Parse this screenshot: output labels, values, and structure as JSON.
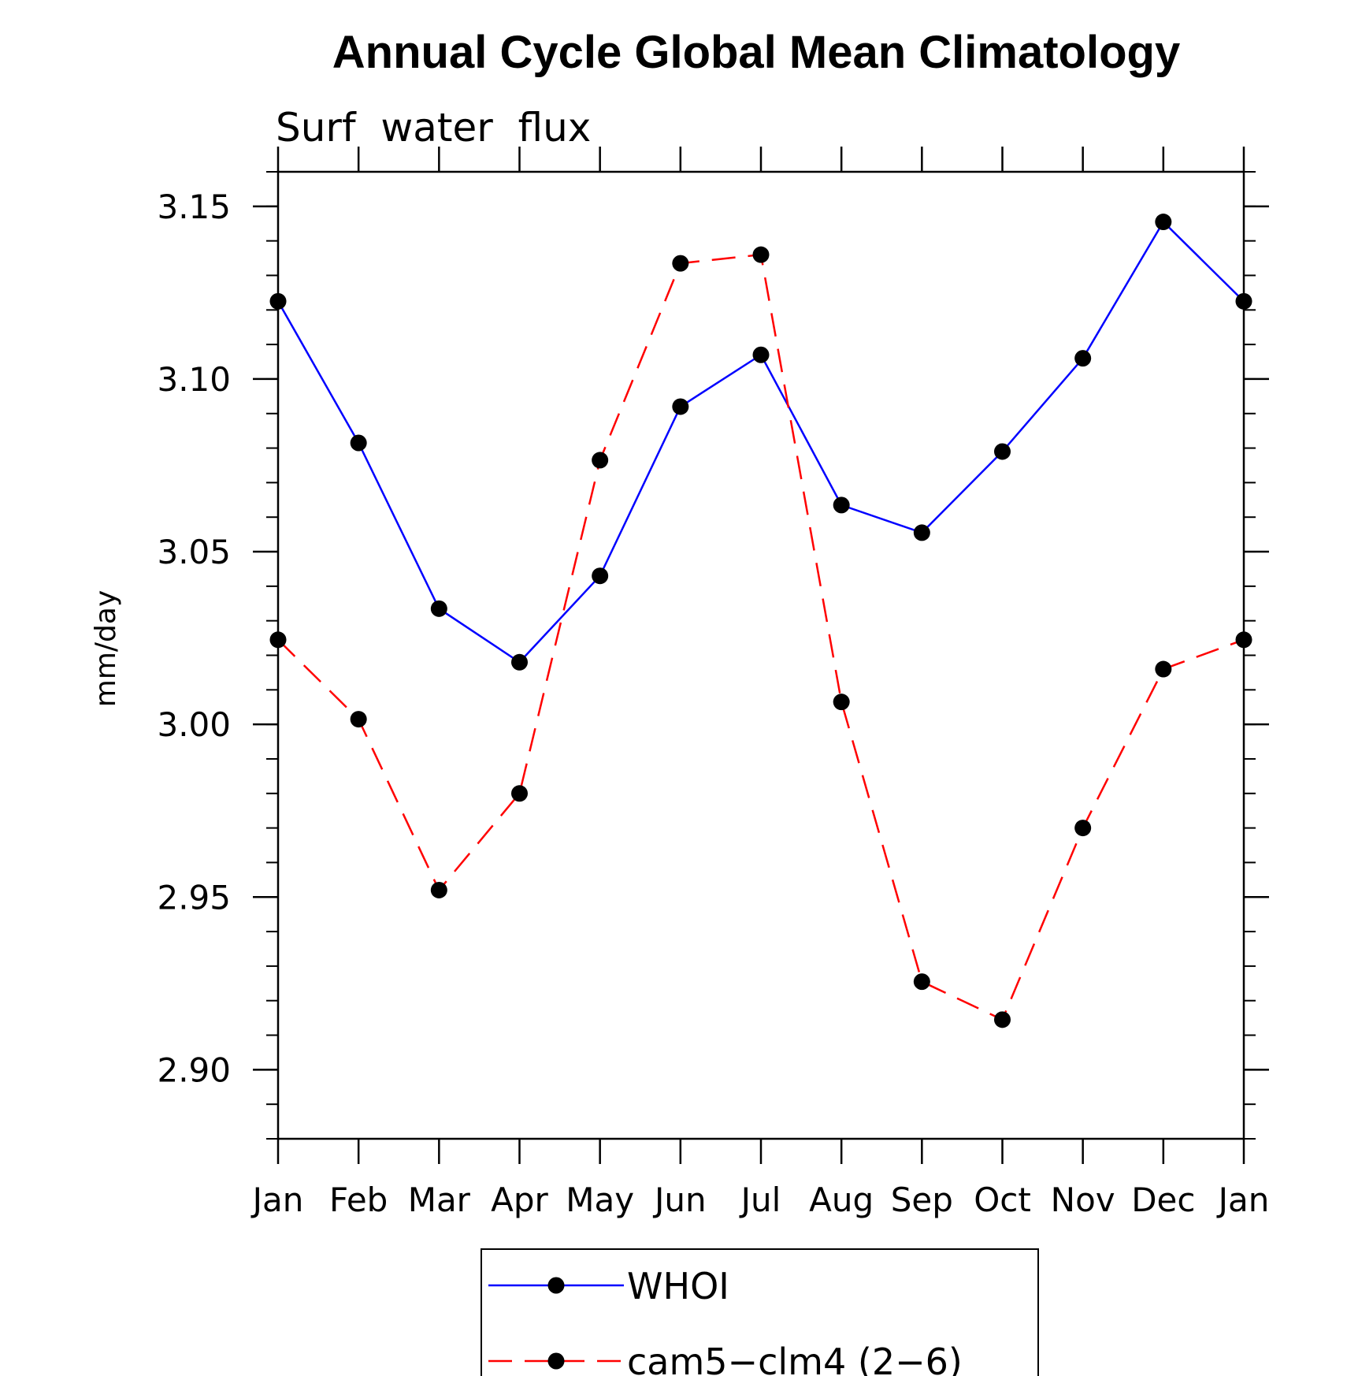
{
  "chart_data": {
    "type": "line",
    "title": "Annual Cycle Global Mean Climatology",
    "subtitle": "Surf  water  flux",
    "xlabel": "",
    "ylabel": "mm/day",
    "categories": [
      "Jan",
      "Feb",
      "Mar",
      "Apr",
      "May",
      "Jun",
      "Jul",
      "Aug",
      "Sep",
      "Oct",
      "Nov",
      "Dec",
      "Jan"
    ],
    "ylim": [
      2.88,
      3.16
    ],
    "yticks": [
      2.9,
      2.95,
      3.0,
      3.05,
      3.1,
      3.15
    ],
    "ytick_labels": [
      "2.90",
      "2.95",
      "3.00",
      "3.05",
      "3.10",
      "3.15"
    ],
    "grid": false,
    "legend_position": "bottom-center",
    "series": [
      {
        "name": "WHOI",
        "color": "#0000ff",
        "dash": "solid",
        "marker": "filled-circle",
        "values": [
          3.1225,
          3.0815,
          3.0335,
          3.018,
          3.043,
          3.092,
          3.107,
          3.0635,
          3.0555,
          3.079,
          3.106,
          3.1455,
          3.1225
        ]
      },
      {
        "name": "cam5−clm4 (2−6)",
        "color": "#ff0000",
        "dash": "dashed",
        "marker": "filled-circle",
        "values": [
          3.0245,
          3.0015,
          2.952,
          2.98,
          3.0765,
          3.1335,
          3.136,
          3.0065,
          2.9255,
          2.9145,
          2.97,
          3.016,
          3.0245
        ]
      }
    ]
  }
}
